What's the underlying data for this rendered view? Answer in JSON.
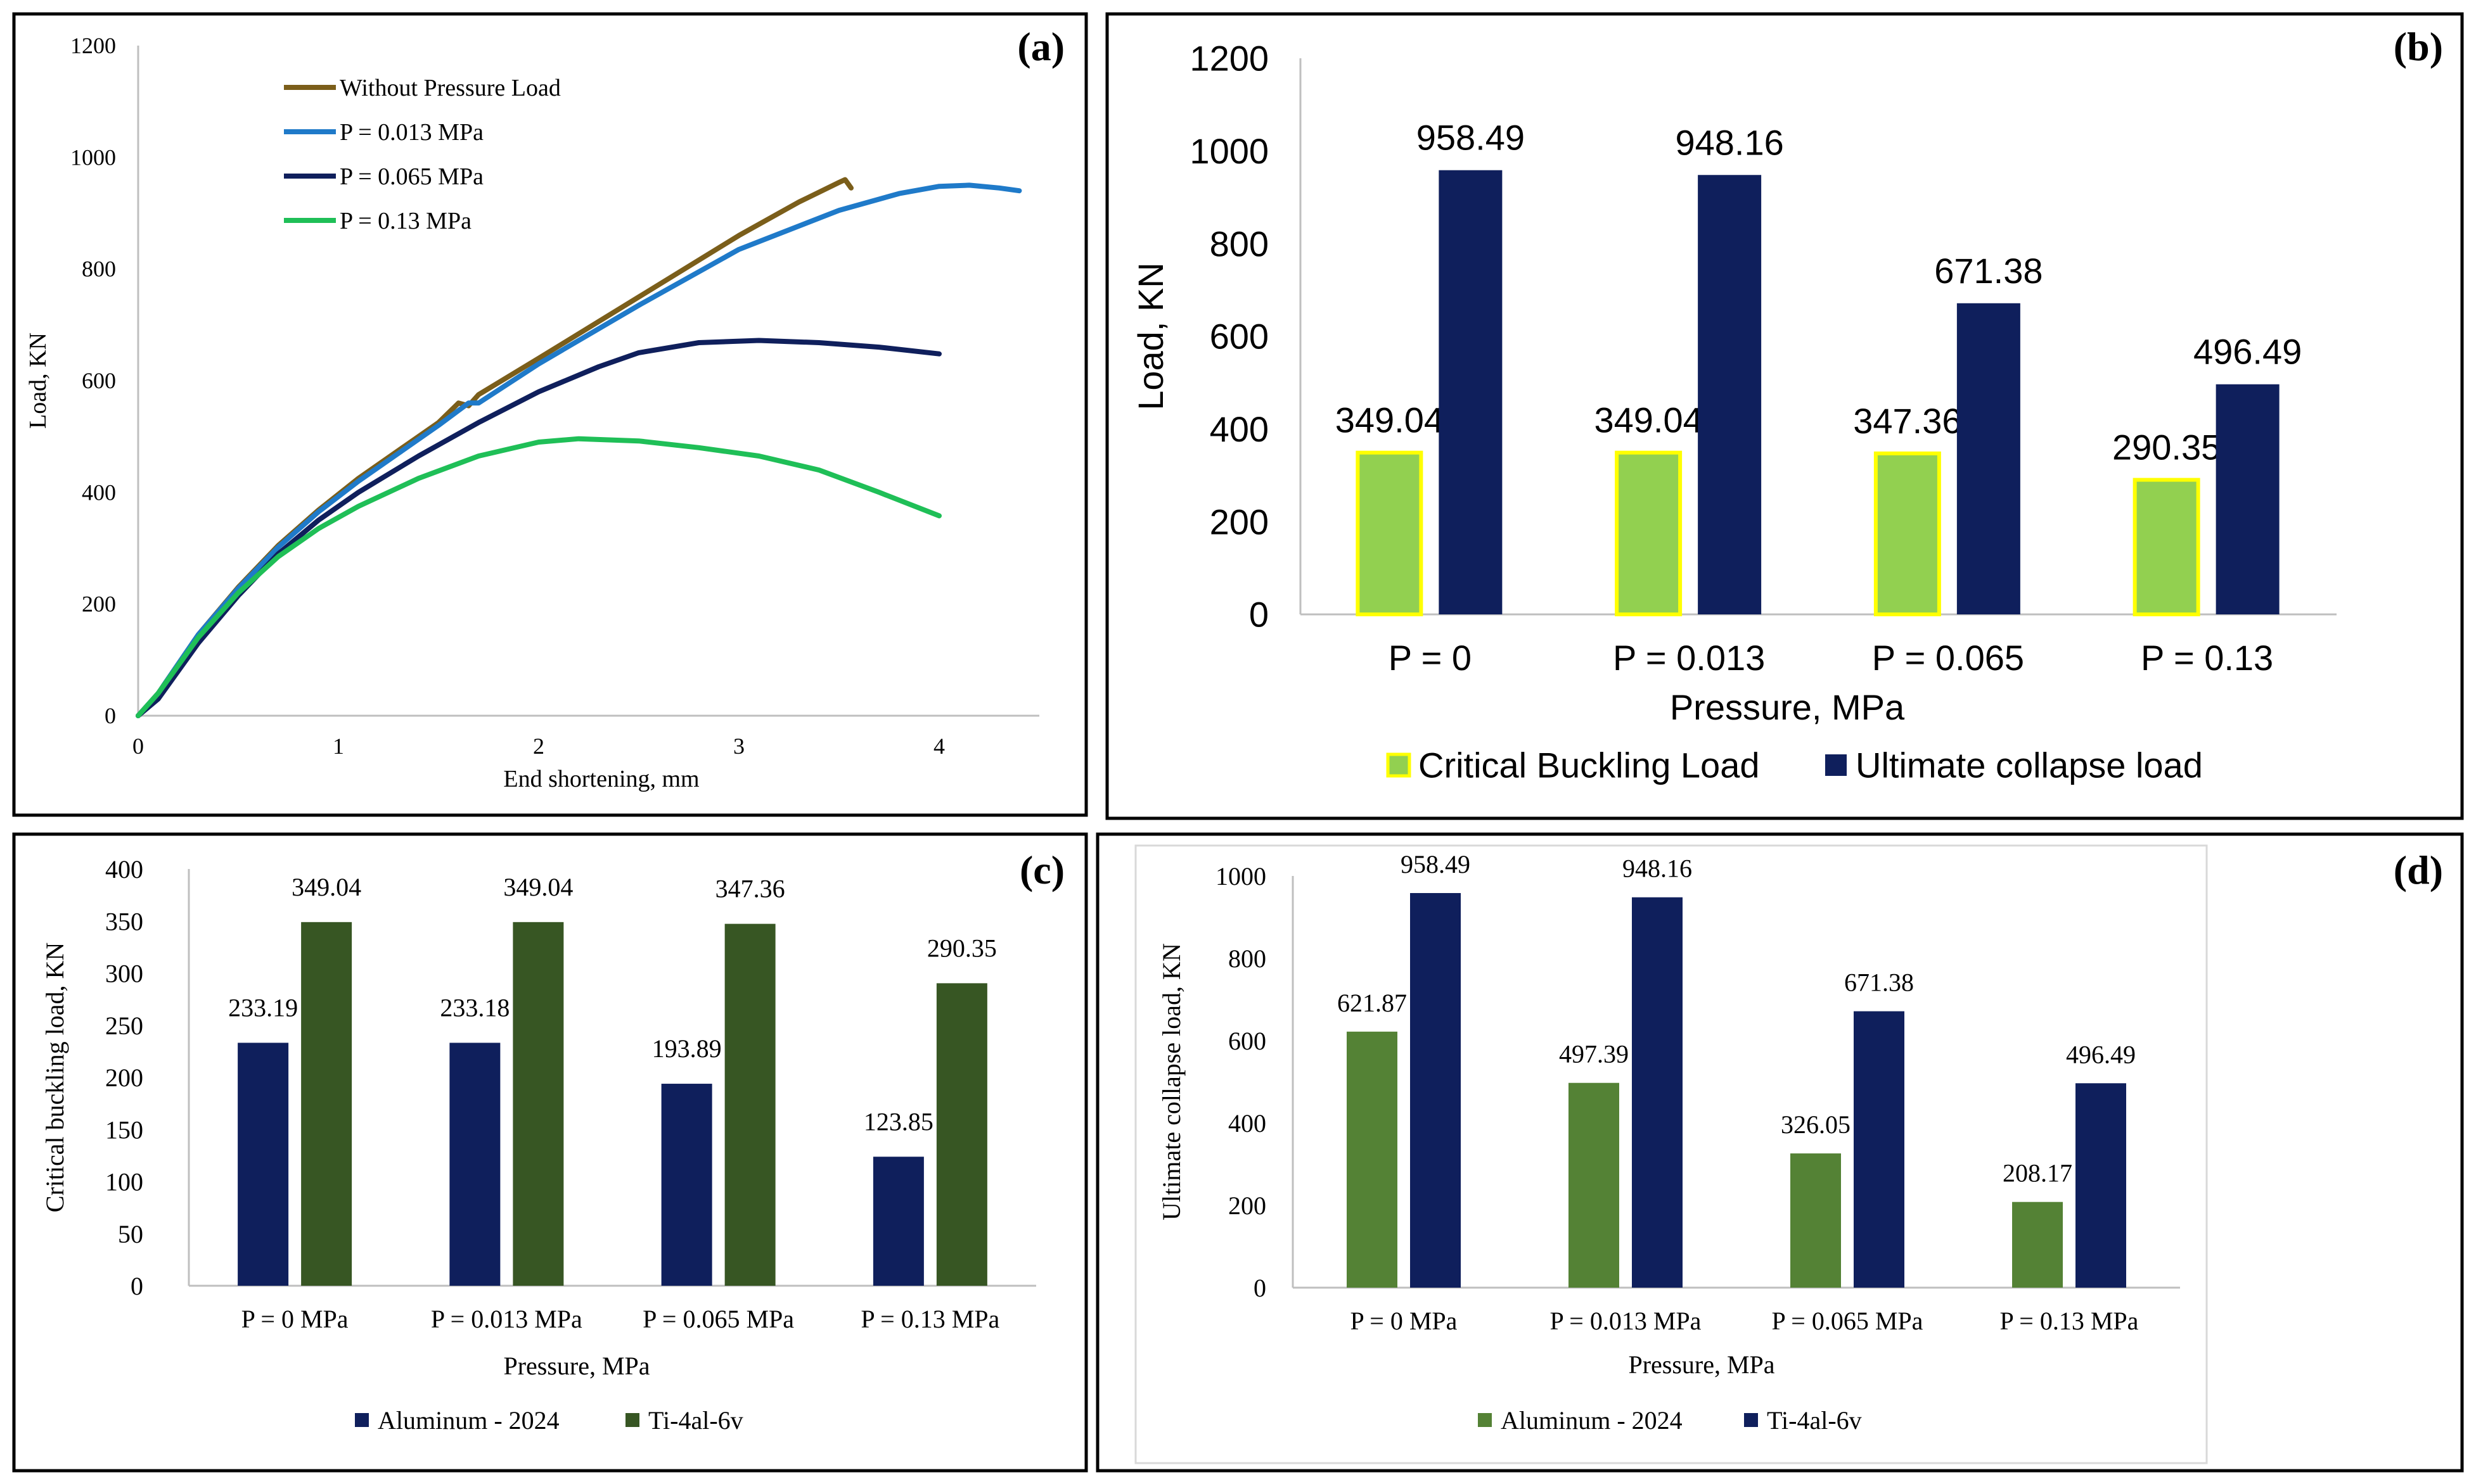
{
  "colors": {
    "olive": "#7B5E1A",
    "lightblue": "#1F7AC9",
    "navy": "#0F1F5C",
    "green": "#1FBF57",
    "lightgreen": "#92D050",
    "yellow": "#FFFF00",
    "darkgreen": "#375623",
    "midgreen": "#548235",
    "axis": "#bfbfbf",
    "frame": "#000000"
  },
  "panels": {
    "a": {
      "label": "(a)"
    },
    "b": {
      "label": "(b)"
    },
    "c": {
      "label": "(c)"
    },
    "d": {
      "label": "(d)"
    }
  },
  "chart_data": [
    {
      "id": "a",
      "type": "line",
      "title": "",
      "xlabel": "End shortening, mm",
      "ylabel": "Load, KN",
      "xlim": [
        0,
        4.5
      ],
      "ylim": [
        0,
        1200
      ],
      "xticks": [
        0,
        1,
        2,
        3,
        4
      ],
      "yticks": [
        0,
        200,
        400,
        600,
        800,
        1000,
        1200
      ],
      "legend_position": "top-left",
      "series": [
        {
          "name": "Without Pressure Load",
          "color": "#7B5E1A",
          "x": [
            0,
            0.1,
            0.3,
            0.5,
            0.7,
            0.9,
            1.1,
            1.3,
            1.5,
            1.6,
            1.65,
            1.7,
            2.0,
            2.5,
            3.0,
            3.3,
            3.5,
            3.53,
            3.56
          ],
          "y": [
            0,
            40,
            145,
            230,
            305,
            368,
            425,
            475,
            525,
            560,
            555,
            575,
            640,
            750,
            860,
            920,
            955,
            960,
            945
          ]
        },
        {
          "name": "P = 0.013 MPa",
          "color": "#1F7AC9",
          "x": [
            0,
            0.1,
            0.3,
            0.5,
            0.7,
            0.9,
            1.1,
            1.3,
            1.5,
            1.65,
            1.7,
            2.0,
            2.5,
            3.0,
            3.5,
            3.8,
            4.0,
            4.15,
            4.3,
            4.4
          ],
          "y": [
            0,
            40,
            145,
            228,
            302,
            365,
            420,
            470,
            520,
            560,
            560,
            630,
            735,
            835,
            905,
            935,
            948,
            950,
            945,
            940
          ]
        },
        {
          "name": "P = 0.065 MPa",
          "color": "#0F1F5C",
          "x": [
            0,
            0.1,
            0.3,
            0.5,
            0.7,
            0.9,
            1.1,
            1.4,
            1.7,
            2.0,
            2.3,
            2.5,
            2.8,
            3.1,
            3.4,
            3.7,
            4.0
          ],
          "y": [
            0,
            30,
            130,
            215,
            290,
            350,
            400,
            465,
            525,
            580,
            625,
            650,
            668,
            672,
            668,
            660,
            648
          ]
        },
        {
          "name": "P = 0.13 MPa",
          "color": "#1FBF57",
          "x": [
            0,
            0.1,
            0.3,
            0.5,
            0.7,
            0.9,
            1.1,
            1.4,
            1.7,
            2.0,
            2.2,
            2.5,
            2.8,
            3.1,
            3.4,
            3.7,
            4.0
          ],
          "y": [
            0,
            40,
            140,
            220,
            285,
            335,
            375,
            425,
            465,
            490,
            496,
            492,
            480,
            465,
            440,
            400,
            358
          ]
        }
      ]
    },
    {
      "id": "b",
      "type": "bar",
      "title": "",
      "xlabel": "Pressure, MPa",
      "ylabel": "Load, KN",
      "categories": [
        "P = 0",
        "P = 0.013",
        "P = 0.065",
        "P = 0.13"
      ],
      "ylim": [
        0,
        1200
      ],
      "yticks": [
        0,
        200,
        400,
        600,
        800,
        1000,
        1200
      ],
      "legend_position": "bottom",
      "series": [
        {
          "name": "Critical Buckling Load",
          "color": "#92D050",
          "stroke": "#FFFF00",
          "values": [
            349.04,
            349.04,
            347.36,
            290.35
          ],
          "labels": [
            "349.04",
            "349.04",
            "347.36",
            "290.35"
          ]
        },
        {
          "name": "Ultimate collapse load",
          "color": "#0F1F5C",
          "stroke": "none",
          "values": [
            958.49,
            948.16,
            671.38,
            496.49
          ],
          "labels": [
            "958.49",
            "948.16",
            "671.38",
            "496.49"
          ]
        }
      ]
    },
    {
      "id": "c",
      "type": "bar",
      "title": "",
      "xlabel": "Pressure, MPa",
      "ylabel": "Critical buckling load, KN",
      "categories": [
        "P = 0 MPa",
        "P = 0.013 MPa",
        "P = 0.065 MPa",
        "P = 0.13 MPa"
      ],
      "ylim": [
        0,
        400
      ],
      "yticks": [
        0,
        50,
        100,
        150,
        200,
        250,
        300,
        350,
        400
      ],
      "legend_position": "bottom",
      "series": [
        {
          "name": "Aluminum - 2024",
          "color": "#0F1F5C",
          "stroke": "none",
          "values": [
            233.19,
            233.18,
            193.89,
            123.85
          ],
          "labels": [
            "233.19",
            "233.18",
            "193.89",
            "123.85"
          ]
        },
        {
          "name": "Ti-4al-6v",
          "color": "#375623",
          "stroke": "none",
          "values": [
            349.04,
            349.04,
            347.36,
            290.35
          ],
          "labels": [
            "349.04",
            "349.04",
            "347.36",
            "290.35"
          ]
        }
      ]
    },
    {
      "id": "d",
      "type": "bar",
      "title": "",
      "xlabel": "Pressure, MPa",
      "ylabel": "Ultimate collapse load, KN",
      "categories": [
        "P = 0 MPa",
        "P = 0.013 MPa",
        "P = 0.065 MPa",
        "P = 0.13 MPa"
      ],
      "ylim": [
        0,
        1000
      ],
      "yticks": [
        0,
        200,
        400,
        600,
        800,
        1000
      ],
      "legend_position": "bottom",
      "series": [
        {
          "name": "Aluminum - 2024",
          "color": "#548235",
          "stroke": "none",
          "values": [
            621.87,
            497.39,
            326.05,
            208.17
          ],
          "labels": [
            "621.87",
            "497.39",
            "326.05",
            "208.17"
          ]
        },
        {
          "name": "Ti-4al-6v",
          "color": "#0F1F5C",
          "stroke": "none",
          "values": [
            958.49,
            948.16,
            671.38,
            496.49
          ],
          "labels": [
            "958.49",
            "948.16",
            "671.38",
            "496.49"
          ]
        }
      ]
    }
  ]
}
